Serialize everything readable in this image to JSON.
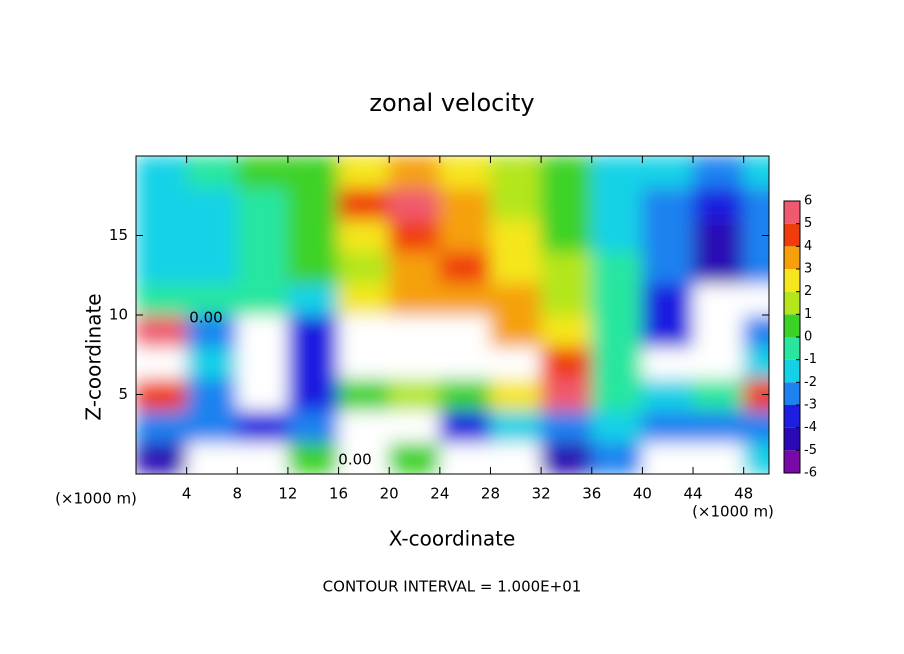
{
  "chart_data": {
    "type": "heatmap",
    "title": "zonal velocity",
    "x_label": "X-coordinate",
    "y_label": "Z-coordinate",
    "x_unit_label": "(×1000 m)",
    "footer": "CONTOUR INTERVAL = 1.000E+01",
    "annotations": [
      "0.00",
      "0.00"
    ],
    "x": [
      2,
      6,
      10,
      14,
      18,
      22,
      26,
      30,
      34,
      38,
      42,
      46,
      50
    ],
    "y": [
      1,
      3,
      5,
      7,
      9,
      11,
      13,
      15,
      17,
      19
    ],
    "values": [
      [
        -5,
        8,
        8,
        0,
        8,
        0,
        8,
        8,
        -5,
        -3,
        8,
        8,
        -2
      ],
      [
        -3,
        -3,
        -4,
        -3,
        8,
        8,
        -4,
        -2,
        -3,
        -2,
        -2.5,
        -3,
        -3
      ],
      [
        4,
        -3,
        8,
        -4,
        0,
        1,
        0,
        2,
        5,
        -1,
        -2,
        -1,
        4
      ],
      [
        8,
        -2,
        8,
        -4,
        8,
        8,
        8,
        8,
        4,
        -0.5,
        8,
        8,
        -2
      ],
      [
        5,
        -3,
        8,
        -4,
        8,
        8,
        8,
        3.5,
        2,
        -0.5,
        -4,
        8,
        -3
      ],
      [
        -1,
        -1,
        -0.5,
        -2,
        2.5,
        3,
        3.5,
        3,
        1.5,
        -1,
        -3.5,
        8,
        8
      ],
      [
        -1.5,
        -1.5,
        -0.5,
        0,
        1.5,
        3.5,
        4,
        2,
        1,
        -1,
        -3,
        -5,
        -3
      ],
      [
        -2,
        -2,
        -1,
        0,
        2,
        4,
        3,
        2,
        0.5,
        -1.5,
        -3,
        -4.5,
        -3
      ],
      [
        -2,
        -1.5,
        -0.5,
        0.5,
        4,
        5,
        3,
        1.5,
        0.5,
        -1.5,
        -2.5,
        -3.5,
        -2.5
      ],
      [
        -2,
        -1,
        0,
        0.5,
        2.5,
        3,
        2.5,
        1,
        0.5,
        -1.5,
        -2,
        -2.5,
        -2
      ]
    ],
    "xlim": [
      0,
      50
    ],
    "ylim": [
      0,
      20
    ],
    "xticks": [
      4,
      8,
      12,
      16,
      20,
      24,
      28,
      32,
      36,
      40,
      44,
      48
    ],
    "yticks": [
      5,
      10,
      15
    ],
    "colorbar_ticks": [
      -6,
      -5,
      -4,
      -3,
      -2,
      -1,
      0,
      1,
      2,
      3,
      4,
      5,
      6
    ],
    "colorbar_colors": [
      "#7a0aa8",
      "#2a0ab4",
      "#1e1ee0",
      "#1e82f0",
      "#14d2e6",
      "#28e6a0",
      "#3cd228",
      "#b4e61e",
      "#f5e61e",
      "#f5a00a",
      "#f03c0a",
      "#f05a6e"
    ]
  }
}
